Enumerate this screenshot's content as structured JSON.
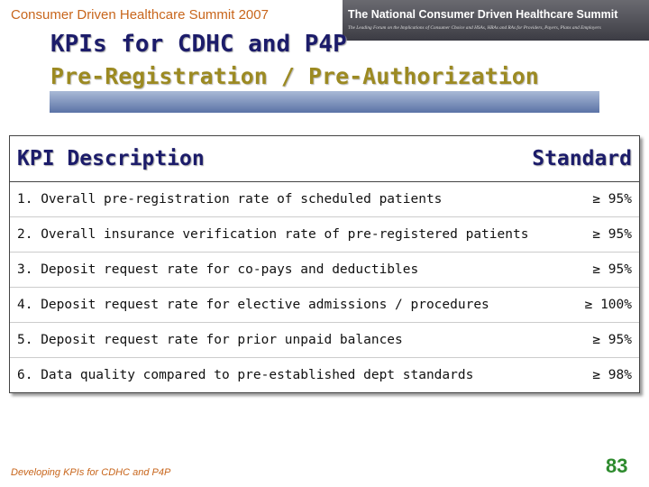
{
  "header": {
    "summit": "Consumer Driven Healthcare Summit 2007",
    "banner_title": "The National Consumer Driven Healthcare Summit",
    "banner_tagline": "The Leading Forum on the Implications of Consumer Choice and HSAs, HRAs and RAs for Providers, Payers, Plans and Employers"
  },
  "title": "KPIs for CDHC and P4P",
  "subtitle": "Pre-Registration / Pre-Authorization",
  "table": {
    "columns": [
      "KPI Description",
      "Standard"
    ],
    "rows": [
      [
        "1. Overall pre-registration rate of scheduled patients",
        "≥ 95%"
      ],
      [
        "2. Overall insurance verification rate of pre-registered patients",
        "≥ 95%"
      ],
      [
        "3. Deposit request rate for co-pays and deductibles",
        "≥ 95%"
      ],
      [
        "4. Deposit request rate for elective admissions / procedures",
        "≥ 100%"
      ],
      [
        "5. Deposit request rate for prior unpaid balances",
        "≥ 95%"
      ],
      [
        "6. Data quality compared to pre-established dept standards",
        "≥ 98%"
      ]
    ]
  },
  "footer": {
    "text": "Developing KPIs for CDHC and P4P",
    "page_number": "83"
  }
}
